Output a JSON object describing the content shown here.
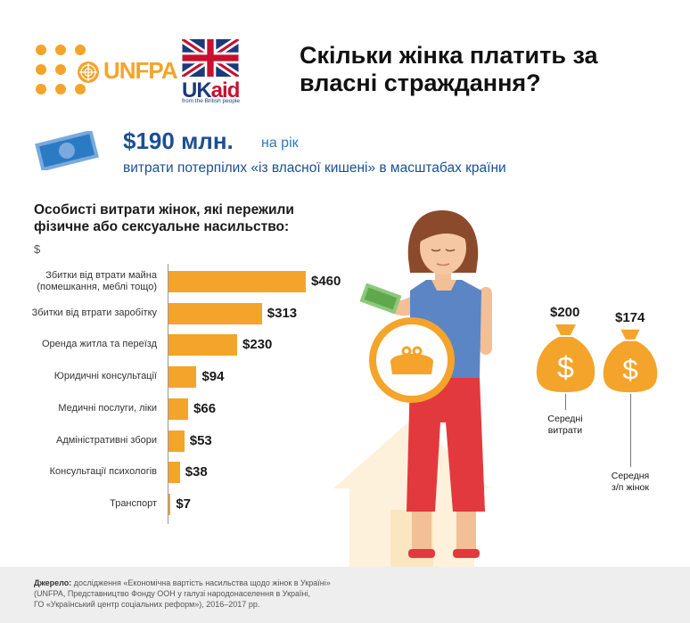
{
  "header": {
    "unfpa_text": "UNFPA",
    "ukaid_uk": "UK",
    "ukaid_aid": "aid",
    "ukaid_sub": "from the British people",
    "title": "Скільки жінка платить за власні страждання?"
  },
  "summary": {
    "amount": "$190 млн.",
    "period": "на рік",
    "description": "витрати потерпілих «із власної кишені» в масштабах країни"
  },
  "chart_data": {
    "type": "bar",
    "title": "Особисті витрати жінок, які пережили фізичне або сексуальне насильство:",
    "ylabel": "$",
    "categories": [
      "Збитки від втрати майна (помешкання, меблі тощо)",
      "Збитки від втрати заробітку",
      "Оренда житла та переїзд",
      "Юридичні консультації",
      "Медичні послуги, ліки",
      "Адміністративні збори",
      "Консультації психологів",
      "Транспорт"
    ],
    "label_lines": [
      [
        "Збитки від втрати майна",
        "(помешкання, меблі тощо)"
      ],
      [
        "Збитки від втрати заробітку"
      ],
      [
        "Оренда житла та переїзд"
      ],
      [
        "Юридичні консультації"
      ],
      [
        "Медичні послуги, ліки"
      ],
      [
        "Адміністративні збори"
      ],
      [
        "Консультації психологів"
      ],
      [
        "Транспорт"
      ]
    ],
    "values": [
      460,
      313,
      230,
      94,
      66,
      53,
      38,
      7
    ],
    "value_labels": [
      "$460",
      "$313",
      "$230",
      "$94",
      "$66",
      "$53",
      "$38",
      "$7"
    ],
    "color": "#f4a42a"
  },
  "bags": [
    {
      "value": "$200",
      "caption": [
        "Середні",
        "витрати"
      ]
    },
    {
      "value": "$174",
      "caption": [
        "Середня",
        "з/п жінок"
      ]
    }
  ],
  "colors": {
    "orange": "#f4a42a",
    "navy": "#1b4f93",
    "blue_accent": "#2a7bc4",
    "shirt": "#5b85c5",
    "pants": "#e2393f",
    "house": "#fdf1dc"
  },
  "icons": [
    "money-bill-icon",
    "purse-icon",
    "money-bag-icon",
    "house-icon",
    "woman-illustration",
    "un-globe-icon",
    "union-flag-icon"
  ],
  "footer": {
    "source_label": "Джерело:",
    "source_text": "дослідження «Економічна вартість насильства щодо жінок в Україні»",
    "line2": "(UNFPA, Представництво Фонду ООН у галузі народонаселення в Україні,",
    "line3": "ГО «Український центр соціальних реформ»), 2016–2017 рр."
  }
}
